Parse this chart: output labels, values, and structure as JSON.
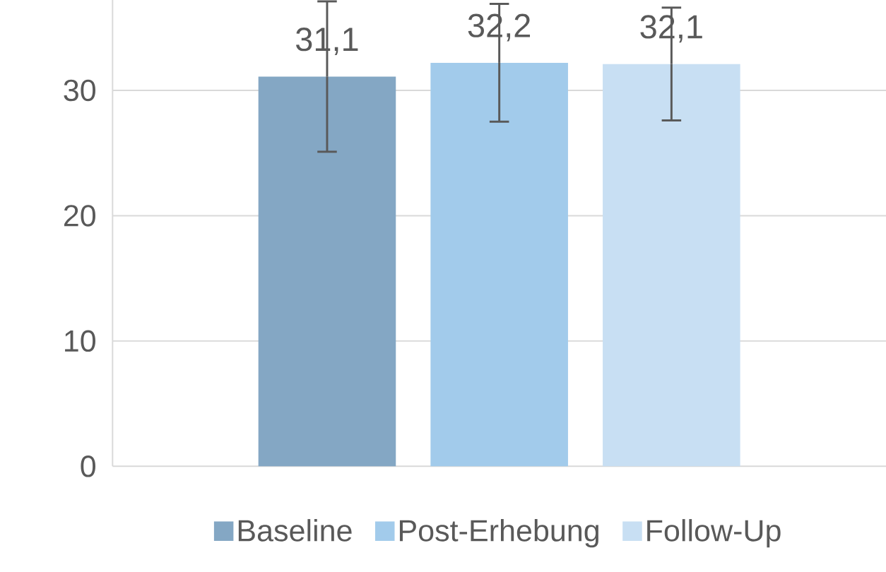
{
  "chart_data": {
    "type": "bar",
    "categories": [
      null
    ],
    "series": [
      {
        "name": "Baseline",
        "color": "#84a7c4",
        "values": [
          31.1
        ],
        "errors": [
          6.0
        ],
        "value_labels": [
          "31,1"
        ]
      },
      {
        "name": "Post-Erhebung",
        "color": "#a2cbeb",
        "values": [
          32.2
        ],
        "errors": [
          4.7
        ],
        "value_labels": [
          "32,2"
        ]
      },
      {
        "name": "Follow-Up",
        "color": "#c8dff3",
        "values": [
          32.1
        ],
        "errors": [
          4.5
        ],
        "value_labels": [
          "32,1"
        ]
      }
    ],
    "ylim": [
      0,
      37.5
    ],
    "yticks": [
      0,
      10,
      20,
      30
    ],
    "grid": "y",
    "legend": "bottom"
  }
}
